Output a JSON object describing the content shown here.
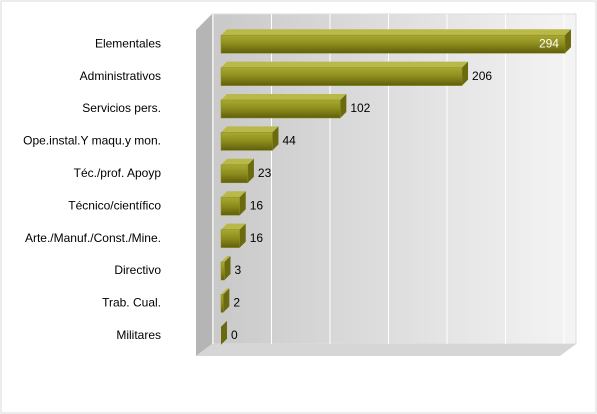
{
  "chart_data": {
    "type": "bar",
    "orientation": "horizontal",
    "categories": [
      "Elementales",
      "Administrativos",
      "Servicios pers.",
      "Ope.instal.Y maqu.y mon.",
      "Téc./prof. Apoyp",
      "Técnico/científico",
      "Arte./Manuf./Const./Mine.",
      "Directivo",
      "Trab. Cual.",
      "Militares"
    ],
    "values": [
      294,
      206,
      102,
      44,
      23,
      16,
      16,
      3,
      2,
      0
    ],
    "color": "#8c8c1c",
    "xlim": [
      0,
      300
    ],
    "xticks": [
      0,
      50,
      100,
      150,
      200,
      250,
      300
    ],
    "grid": true
  }
}
